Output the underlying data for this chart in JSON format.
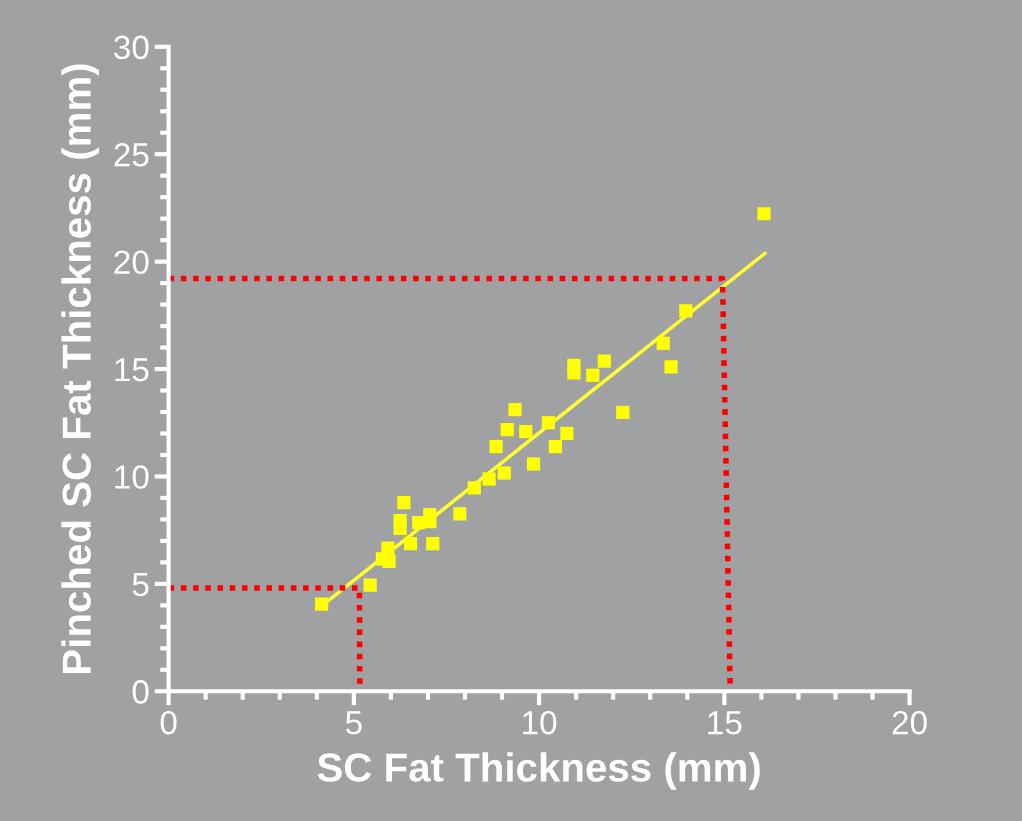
{
  "chart_data": {
    "type": "scatter",
    "xlabel": "SC Fat Thickness (mm)",
    "ylabel": "Pinched SC Fat Thickness (mm)",
    "xlim": [
      0,
      20
    ],
    "xticks": [
      0,
      5,
      10,
      15,
      20
    ],
    "ylim": [
      0,
      30
    ],
    "yticks": [
      0,
      5,
      10,
      15,
      20,
      25,
      30
    ],
    "grid": false,
    "series": [
      {
        "marker": "square",
        "color": "#ffff00",
        "x": [
          4.13,
          5.44,
          5.77,
          5.95,
          5.92,
          6.35,
          6.25,
          6.25,
          6.53,
          6.75,
          7.05,
          7.05,
          7.13,
          7.86,
          8.25,
          8.65,
          9.06,
          8.84,
          9.14,
          9.35,
          9.64,
          9.85,
          10.25,
          10.44,
          10.75,
          10.94,
          10.94,
          11.45,
          11.76,
          12.26,
          13.35,
          13.56,
          13.96,
          16.07
        ],
        "values": [
          4.06,
          4.94,
          6.16,
          6.05,
          6.66,
          8.78,
          7.95,
          7.58,
          6.87,
          7.85,
          8.22,
          7.89,
          6.87,
          8.26,
          9.47,
          9.88,
          10.16,
          11.39,
          12.18,
          13.11,
          12.09,
          10.58,
          12.5,
          11.39,
          12.0,
          15.17,
          14.82,
          14.71,
          15.37,
          12.98,
          16.2,
          15.1,
          17.71,
          22.23
        ]
      },
      {
        "type": "line",
        "color": "#ffff33",
        "line_style": "solid",
        "x": [
          4.27,
          16.1
        ],
        "values": [
          4.16,
          20.39
        ]
      },
      {
        "type": "line",
        "color": "#ff0000",
        "line_style": "dotted",
        "x": [
          0,
          5.15,
          5.16
        ],
        "values": [
          4.81,
          4.81,
          0
        ]
      },
      {
        "type": "line",
        "color": "#ff0000",
        "line_style": "dotted",
        "x": [
          0,
          14.95,
          15.16
        ],
        "values": [
          19.21,
          19.21,
          0
        ]
      }
    ]
  }
}
